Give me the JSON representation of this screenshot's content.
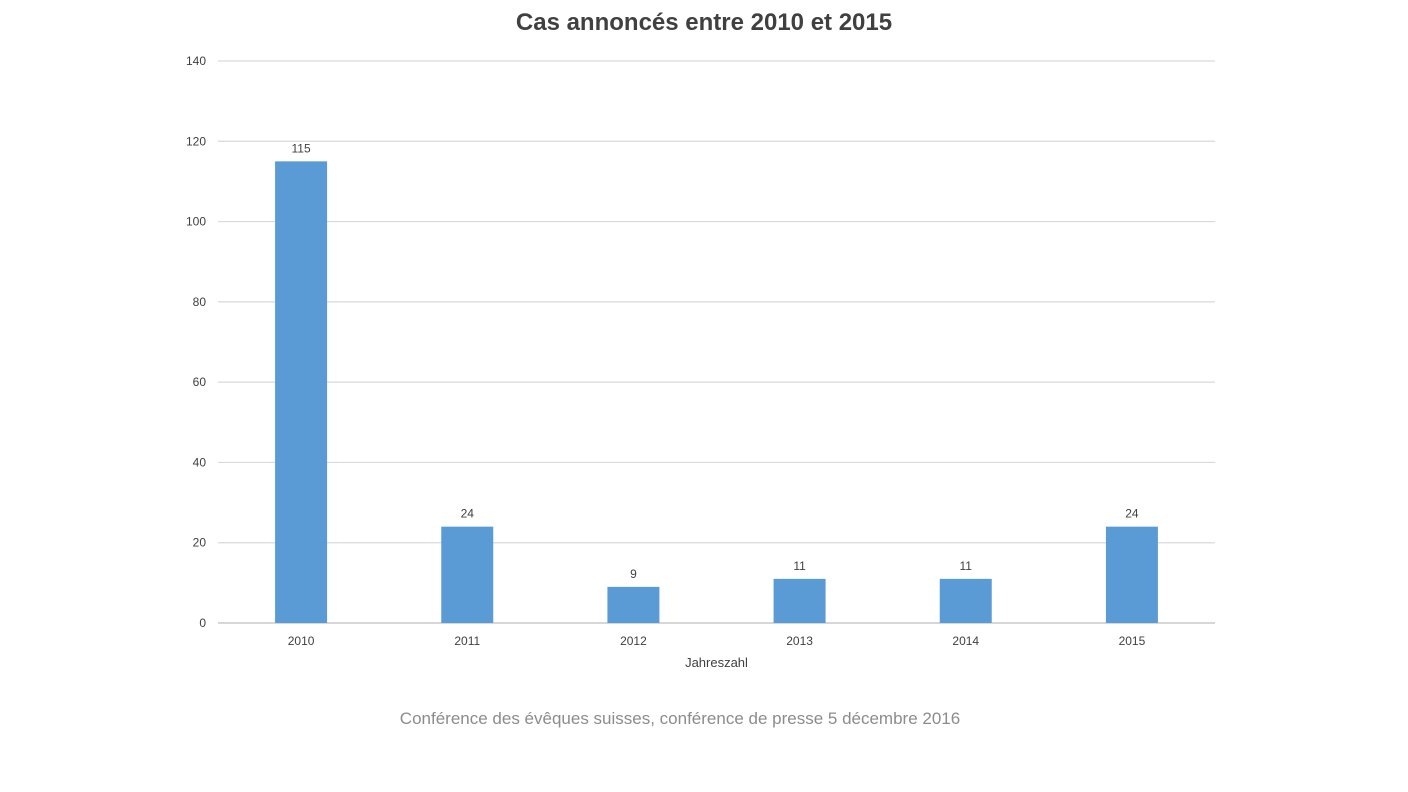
{
  "chart_data": {
    "type": "bar",
    "title": "Cas annoncés entre 2010 et 2015",
    "xlabel": "Jahreszahl",
    "ylabel": "",
    "categories": [
      "2010",
      "2011",
      "2012",
      "2013",
      "2014",
      "2015"
    ],
    "values": [
      115,
      24,
      9,
      11,
      11,
      24
    ],
    "data_labels": [
      "115",
      "24",
      "9",
      "11",
      "11",
      "24"
    ],
    "ylim": [
      0,
      140
    ],
    "yticks": [
      0,
      20,
      40,
      60,
      80,
      100,
      120,
      140
    ],
    "grid": true,
    "legend": "none",
    "bar_color": "#5B9BD5",
    "grid_color": "#d9d9d9"
  },
  "caption": "Conférence des évêques suisses, conférence de presse 5 décembre 2016"
}
